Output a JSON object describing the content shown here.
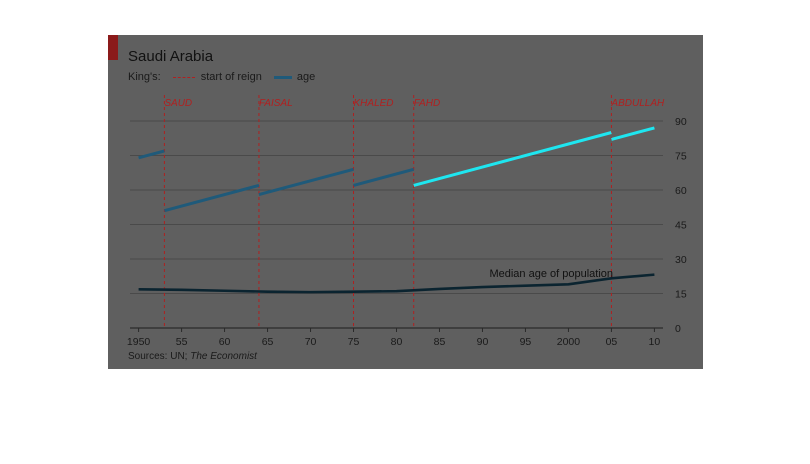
{
  "title": "Saudi Arabia",
  "legend": {
    "prefix": "King's:",
    "reign_label": "start of reign",
    "age_label": "age"
  },
  "source": {
    "prefix": "Sources: UN; ",
    "italic": "The Economist"
  },
  "colors": {
    "panel": "#5f5f5f",
    "accent_red": "#8b1a1a",
    "reign_line": "#b02020",
    "age_dark": "#1f5a7a",
    "age_highlight": "#1ee6f0",
    "median_line": "#0b2430",
    "grid": "#4a4a4a"
  },
  "chart_data": {
    "type": "line",
    "title": "Saudi Arabia",
    "xlim": [
      1949,
      2011
    ],
    "ylim": [
      0,
      90
    ],
    "x_ticks": [
      1950,
      1955,
      1960,
      1965,
      1970,
      1975,
      1980,
      1985,
      1990,
      1995,
      2000,
      2005,
      2010
    ],
    "x_tick_labels": [
      "1950",
      "55",
      "60",
      "65",
      "70",
      "75",
      "80",
      "85",
      "90",
      "95",
      "2000",
      "05",
      "10"
    ],
    "y_ticks": [
      0,
      15,
      30,
      45,
      60,
      75,
      90
    ],
    "y_tick_labels": [
      "0",
      "15",
      "30",
      "45",
      "60",
      "75",
      "90"
    ],
    "y_axis_side": "right",
    "grid": true,
    "reigns": [
      {
        "king": "SAUD",
        "start": 1953
      },
      {
        "king": "FAISAL",
        "start": 1964
      },
      {
        "king": "KHALED",
        "start": 1975
      },
      {
        "king": "FAHD",
        "start": 1982
      },
      {
        "king": "ABDULLAH",
        "start": 2005
      }
    ],
    "series": [
      {
        "name": "age",
        "segments": [
          {
            "x": [
              1950,
              1953
            ],
            "y": [
              74,
              77
            ]
          },
          {
            "x": [
              1953,
              1964
            ],
            "y": [
              51,
              62
            ]
          },
          {
            "x": [
              1964,
              1975
            ],
            "y": [
              58,
              69
            ]
          },
          {
            "x": [
              1975,
              1982
            ],
            "y": [
              62,
              69
            ]
          },
          {
            "x": [
              1982,
              2005
            ],
            "y": [
              62,
              85
            ]
          },
          {
            "x": [
              2005,
              2010
            ],
            "y": [
              82,
              87
            ]
          }
        ]
      },
      {
        "name": "Median age of population",
        "x": [
          1950,
          1955,
          1960,
          1965,
          1970,
          1975,
          1980,
          1985,
          1990,
          1995,
          2000,
          2005,
          2010
        ],
        "y": [
          16.8,
          16.6,
          16.2,
          15.8,
          15.6,
          15.8,
          16.0,
          17.0,
          17.8,
          18.4,
          19.0,
          21.6,
          23.2
        ]
      }
    ],
    "annotations": [
      "Median age of population"
    ]
  }
}
